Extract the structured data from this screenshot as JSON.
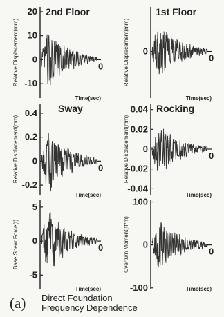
{
  "caption": {
    "letter": "(a)",
    "line1": "Direct Foundation",
    "line2": "Frequency Dependence"
  },
  "chart_data": [
    {
      "type": "line",
      "title": "2nd Floor",
      "ylabel": "Relative Displacement(mm)",
      "xlabel": "Time(sec)",
      "ylim": [
        -16,
        22
      ],
      "yticks": [
        "20",
        "10",
        "0",
        "-10"
      ],
      "ytick_values": [
        20,
        10,
        0,
        -10
      ],
      "xtick": "0",
      "x_range": [
        0,
        1
      ],
      "amp": 14,
      "series": [
        {
          "values": []
        }
      ]
    },
    {
      "type": "line",
      "title": "1st Floor",
      "ylabel": "Relative Displacement(mm)",
      "xlabel": "Time(sec)",
      "ylim": [
        -4.6,
        4.4
      ],
      "yticks": [
        "0"
      ],
      "ytick_values": [
        0
      ],
      "xtick": "0",
      "x_range": [
        0,
        1
      ],
      "amp": 3.3,
      "series": [
        {
          "values": []
        }
      ]
    },
    {
      "type": "line",
      "title": "Sway",
      "ylabel": "Relative Displacement(mm)",
      "xlabel": "Time(sec)",
      "ylim": [
        -0.28,
        0.48
      ],
      "yticks": [
        "0.4",
        "0.2",
        "0",
        "-0.2"
      ],
      "ytick_values": [
        0.4,
        0.2,
        0,
        -0.2
      ],
      "xtick": "0",
      "x_range": [
        0,
        1
      ],
      "amp": 0.3,
      "series": [
        {
          "values": []
        }
      ]
    },
    {
      "type": "line",
      "title": "Rocking",
      "ylabel": "Relative Displacement(mm)",
      "xlabel": "Time(sec)",
      "ylim": [
        -0.046,
        0.046
      ],
      "yticks": [
        "0.04",
        "0.02",
        "0",
        "-0.02",
        "-0.04"
      ],
      "ytick_values": [
        0.04,
        0.02,
        0,
        -0.02,
        -0.04
      ],
      "xtick": "0",
      "x_range": [
        0,
        1
      ],
      "amp": 0.03,
      "series": [
        {
          "values": []
        }
      ]
    },
    {
      "type": "line",
      "title": "",
      "ylabel": "Base Shear Force(t)",
      "xlabel": "Time(sec)",
      "ylim": [
        -7,
        6
      ],
      "yticks": [
        "5",
        "0",
        "-5"
      ],
      "ytick_values": [
        5,
        0,
        -5
      ],
      "xtick": "0",
      "x_range": [
        0,
        1
      ],
      "amp": 5,
      "series": [
        {
          "values": []
        }
      ]
    },
    {
      "type": "line",
      "title": "",
      "ylabel": "Overturn Moment(tf*m)",
      "xlabel": "Time(sec)",
      "ylim": [
        -102,
        104
      ],
      "yticks": [
        "100",
        "0",
        "-100"
      ],
      "ytick_values": [
        100,
        0,
        -100
      ],
      "xtick": "0",
      "x_range": [
        0,
        1
      ],
      "amp": 70,
      "series": [
        {
          "values": []
        }
      ]
    }
  ]
}
